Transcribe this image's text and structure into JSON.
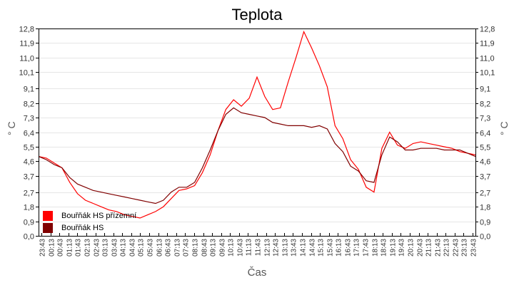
{
  "chart_data": {
    "type": "line",
    "title": "Teplota",
    "xlabel": "Čas",
    "ylabel": "° C",
    "ylabel_right": "° C",
    "ylim": [
      0.0,
      12.8
    ],
    "yticks": [
      "0,0",
      "0,9",
      "1,8",
      "2,7",
      "3,7",
      "4,6",
      "5,5",
      "6,4",
      "7,3",
      "8,2",
      "9,1",
      "10,1",
      "11,0",
      "11,9",
      "12,8"
    ],
    "xticks": [
      "23:43",
      "00:13",
      "00:43",
      "01:13",
      "01:43",
      "02:13",
      "02:43",
      "03:13",
      "03:43",
      "04:13",
      "04:43",
      "05:13",
      "05:43",
      "06:13",
      "06:43",
      "07:13",
      "07:43",
      "08:13",
      "08:43",
      "09:13",
      "09:43",
      "10:13",
      "10:43",
      "11:13",
      "11:43",
      "12:13",
      "12:43",
      "13:13",
      "13:43",
      "14:13",
      "14:43",
      "15:13",
      "15:43",
      "16:13",
      "16:43",
      "17:13",
      "17:43",
      "18:13",
      "18:43",
      "19:13",
      "19:43",
      "20:13",
      "20:43",
      "21:13",
      "21:43",
      "22:13",
      "22:43",
      "23:13",
      "23:43"
    ],
    "grid": true,
    "legend_position": "lower-left",
    "series": [
      {
        "name": "Bouřňák HS přízemní",
        "color": "#ff0000",
        "values": [
          4.9,
          4.8,
          4.5,
          4.2,
          3.3,
          2.6,
          2.2,
          2.0,
          1.8,
          1.6,
          1.5,
          1.3,
          1.2,
          1.1,
          1.3,
          1.5,
          1.8,
          2.3,
          2.8,
          2.9,
          3.1,
          3.9,
          5.0,
          6.5,
          7.8,
          8.4,
          8.0,
          8.5,
          9.8,
          8.6,
          7.8,
          7.9,
          9.5,
          11.0,
          12.6,
          11.6,
          10.5,
          9.2,
          6.8,
          6.0,
          4.7,
          4.1,
          3.0,
          2.7,
          5.4,
          6.4,
          5.6,
          5.4,
          5.7,
          5.8,
          5.7,
          5.6,
          5.5,
          5.4,
          5.2,
          5.1,
          5.0
        ]
      },
      {
        "name": "Bouřňák HS",
        "color": "#800000",
        "values": [
          4.9,
          4.7,
          4.4,
          4.2,
          3.6,
          3.2,
          3.0,
          2.8,
          2.7,
          2.6,
          2.5,
          2.4,
          2.3,
          2.2,
          2.1,
          2.0,
          2.2,
          2.7,
          3.0,
          3.0,
          3.3,
          4.2,
          5.3,
          6.5,
          7.5,
          7.9,
          7.6,
          7.5,
          7.4,
          7.3,
          7.0,
          6.9,
          6.8,
          6.8,
          6.8,
          6.7,
          6.8,
          6.6,
          5.7,
          5.2,
          4.3,
          4.0,
          3.4,
          3.3,
          5.0,
          6.1,
          5.8,
          5.3,
          5.3,
          5.4,
          5.4,
          5.4,
          5.3,
          5.3,
          5.3,
          5.1,
          4.9
        ]
      }
    ]
  },
  "header": {
    "title": "Teplota"
  },
  "axes": {
    "y_left_label": "° C",
    "y_right_label": "° C",
    "x_label": "Čas"
  },
  "legend": [
    {
      "label": "Bouřňák HS přízemní",
      "color": "#ff0000"
    },
    {
      "label": "Bouřňák HS",
      "color": "#800000"
    }
  ]
}
